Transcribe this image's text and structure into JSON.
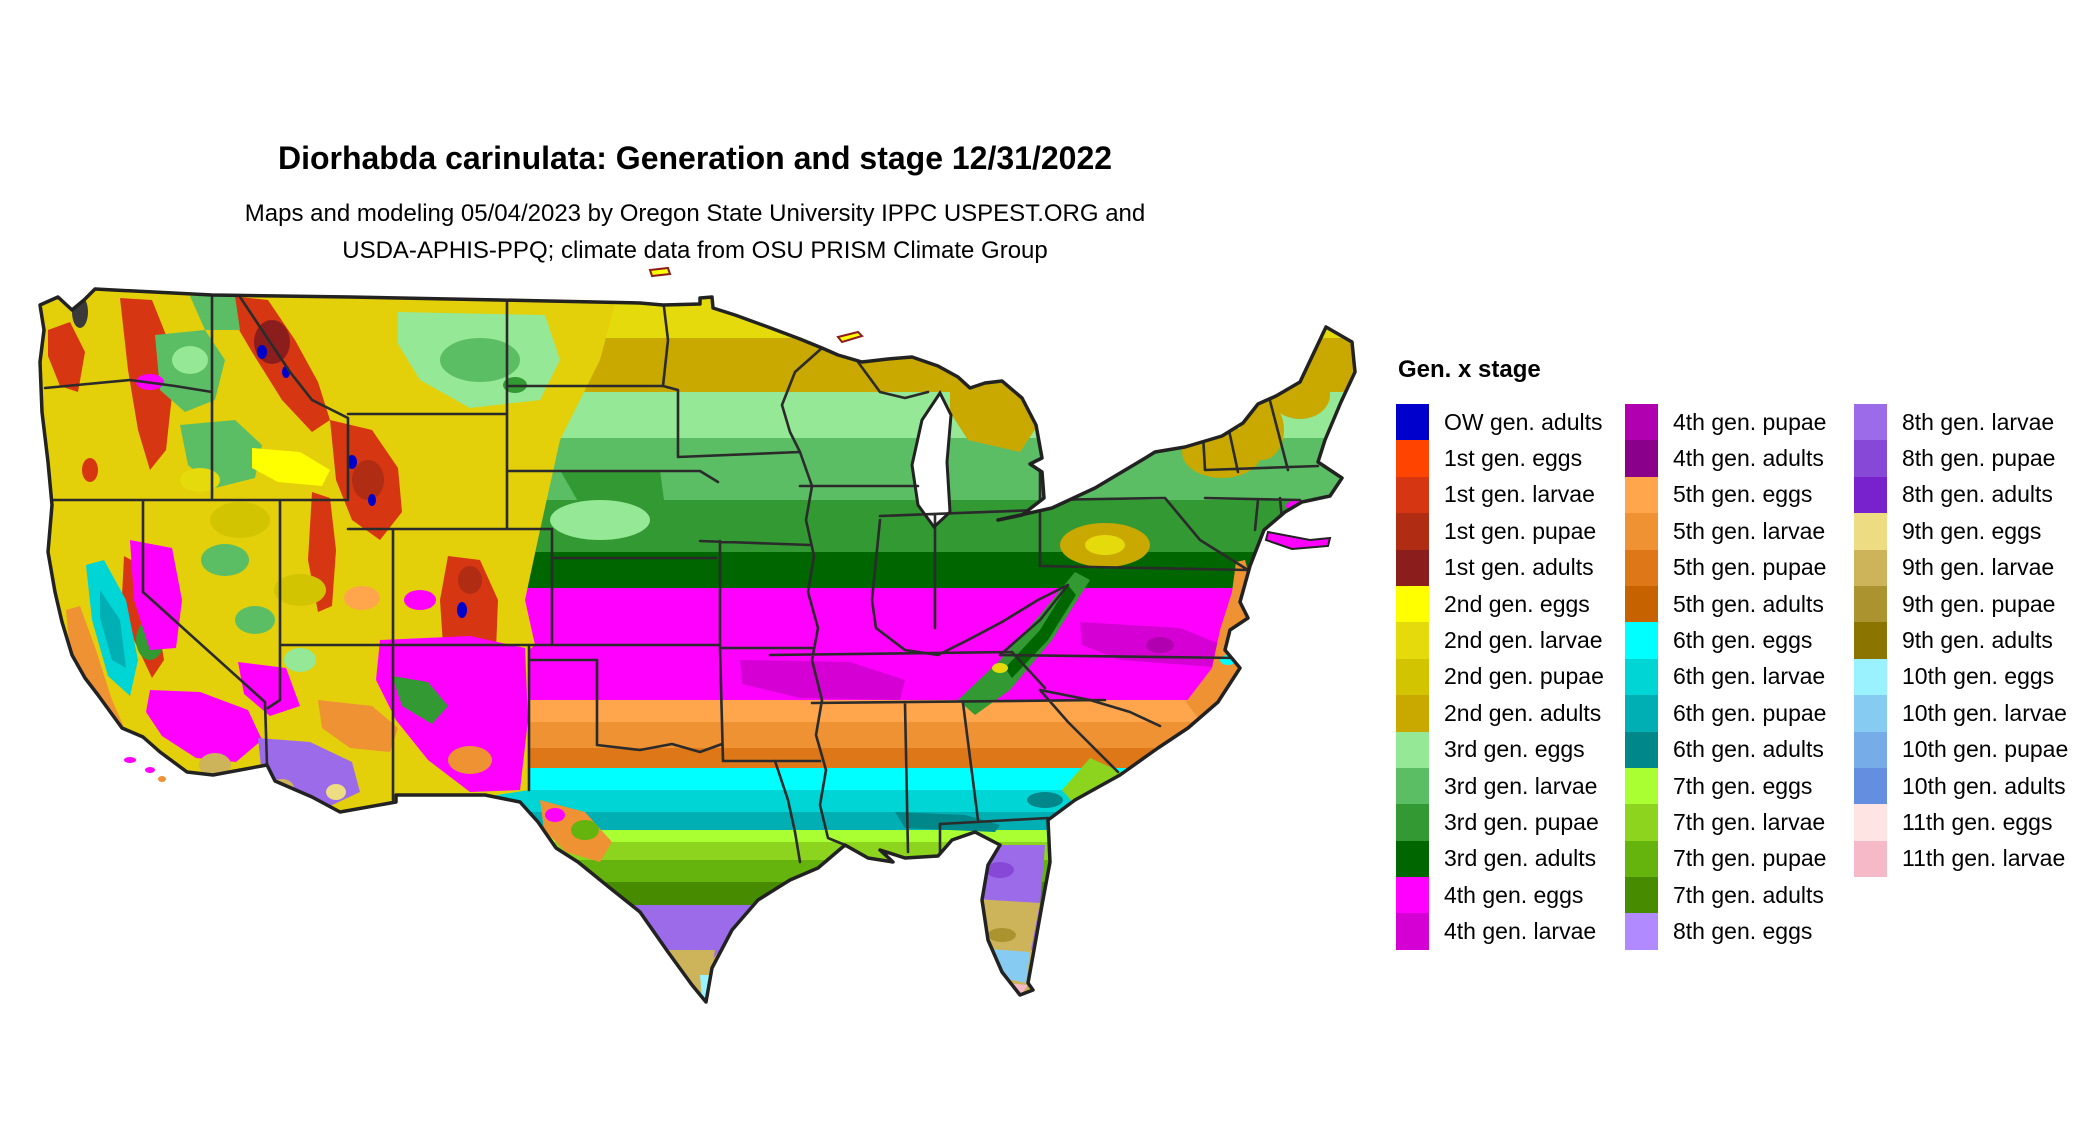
{
  "header": {
    "title": "Diorhabda carinulata: Generation and stage 12/31/2022",
    "subtitle_line1": "Maps and modeling 05/04/2023 by Oregon State University IPPC USPEST.ORG and",
    "subtitle_line2": "USDA-APHIS-PPQ; climate data from OSU PRISM Climate Group"
  },
  "legend": {
    "title": "Gen. x stage",
    "columns": [
      [
        {
          "key": "ow-adults",
          "label": "OW gen. adults"
        },
        {
          "key": "1-eggs",
          "label": "1st gen. eggs"
        },
        {
          "key": "1-larvae",
          "label": "1st gen. larvae"
        },
        {
          "key": "1-pupae",
          "label": "1st gen. pupae"
        },
        {
          "key": "1-adults",
          "label": "1st gen. adults"
        },
        {
          "key": "2-eggs",
          "label": "2nd gen. eggs"
        },
        {
          "key": "2-larvae",
          "label": "2nd gen. larvae"
        },
        {
          "key": "2-pupae",
          "label": "2nd gen. pupae"
        },
        {
          "key": "2-adults",
          "label": "2nd gen. adults"
        },
        {
          "key": "3-eggs",
          "label": "3rd gen. eggs"
        },
        {
          "key": "3-larvae",
          "label": "3rd gen. larvae"
        },
        {
          "key": "3-pupae",
          "label": "3rd gen. pupae"
        },
        {
          "key": "3-adults",
          "label": "3rd gen. adults"
        },
        {
          "key": "4-eggs",
          "label": "4th gen. eggs"
        },
        {
          "key": "4-larvae",
          "label": "4th gen. larvae"
        }
      ],
      [
        {
          "key": "4-pupae",
          "label": "4th gen. pupae"
        },
        {
          "key": "4-adults",
          "label": "4th gen. adults"
        },
        {
          "key": "5-eggs",
          "label": "5th gen. eggs"
        },
        {
          "key": "5-larvae",
          "label": "5th gen. larvae"
        },
        {
          "key": "5-pupae",
          "label": "5th gen. pupae"
        },
        {
          "key": "5-adults",
          "label": "5th gen. adults"
        },
        {
          "key": "6-eggs",
          "label": "6th gen. eggs"
        },
        {
          "key": "6-larvae",
          "label": "6th gen. larvae"
        },
        {
          "key": "6-pupae",
          "label": "6th gen. pupae"
        },
        {
          "key": "6-adults",
          "label": "6th gen. adults"
        },
        {
          "key": "7-eggs",
          "label": "7th gen. eggs"
        },
        {
          "key": "7-larvae",
          "label": "7th gen. larvae"
        },
        {
          "key": "7-pupae",
          "label": "7th gen. pupae"
        },
        {
          "key": "7-adults",
          "label": "7th gen. adults"
        },
        {
          "key": "8-eggs",
          "label": "8th gen. eggs"
        }
      ],
      [
        {
          "key": "8-larvae",
          "label": "8th gen. larvae"
        },
        {
          "key": "8-pupae",
          "label": "8th gen. pupae"
        },
        {
          "key": "8-adults",
          "label": "8th gen. adults"
        },
        {
          "key": "9-eggs",
          "label": "9th gen. eggs"
        },
        {
          "key": "9-larvae",
          "label": "9th gen. larvae"
        },
        {
          "key": "9-pupae",
          "label": "9th gen. pupae"
        },
        {
          "key": "9-adults",
          "label": "9th gen. adults"
        },
        {
          "key": "10-eggs",
          "label": "10th gen. eggs"
        },
        {
          "key": "10-larvae",
          "label": "10th gen. larvae"
        },
        {
          "key": "10-pupae",
          "label": "10th gen. pupae"
        },
        {
          "key": "10-adults",
          "label": "10th gen. adults"
        },
        {
          "key": "11-eggs",
          "label": "11th gen. eggs"
        },
        {
          "key": "11-larvae",
          "label": "11th gen. larvae"
        }
      ]
    ]
  },
  "palette": {
    "ow-adults": "#0000CC",
    "1-eggs": "#FF4400",
    "1-larvae": "#D63612",
    "1-pupae": "#B02C12",
    "1-adults": "#8B1D1D",
    "2-eggs": "#FFFF00",
    "2-larvae": "#E5DB0C",
    "2-pupae": "#D3C402",
    "2-adults": "#C9A800",
    "3-eggs": "#95E895",
    "3-larvae": "#5CBE64",
    "3-pupae": "#339933",
    "3-adults": "#006600",
    "4-eggs": "#FF00FF",
    "4-larvae": "#D400D4",
    "4-pupae": "#B000B0",
    "4-adults": "#8B008B",
    "5-eggs": "#FFA64D",
    "5-larvae": "#EE9233",
    "5-pupae": "#DD7718",
    "5-adults": "#C66300",
    "6-eggs": "#00FFFF",
    "6-larvae": "#00D5D5",
    "6-pupae": "#00AFB4",
    "6-adults": "#008789",
    "7-eggs": "#AAFF32",
    "7-larvae": "#8CD41E",
    "7-pupae": "#65B30D",
    "7-adults": "#478C00",
    "8-eggs": "#B28AFF",
    "8-larvae": "#9B6BEA",
    "8-pupae": "#8748D8",
    "8-adults": "#7722CC",
    "9-eggs": "#EDDC82",
    "9-larvae": "#CDB45A",
    "9-pupae": "#AB9430",
    "9-adults": "#8B7500",
    "10-eggs": "#9BF2FF",
    "10-larvae": "#86CCF2",
    "10-pupae": "#76ACE8",
    "10-adults": "#648FE0",
    "11-eggs": "#FFE4E4",
    "11-larvae": "#F5B9C8",
    "west-base": "#E3CF0A",
    "water": "#FFFFFF",
    "puget": "#3A3A3A",
    "border": "#2B2B2B",
    "outline": "#222222"
  }
}
